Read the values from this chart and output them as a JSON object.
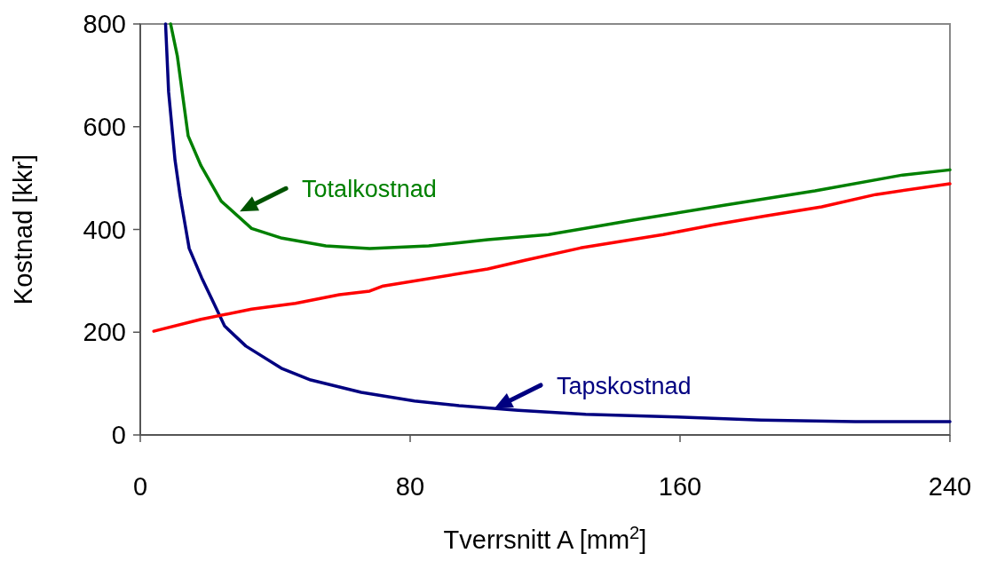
{
  "chart_data": {
    "type": "line",
    "xlabel": "Tverrsnitt A [mm$^{2}$]",
    "ylabel": "Kostnad [kkr]",
    "xlim": [
      0,
      240
    ],
    "xticks": [
      0,
      80,
      160,
      240
    ],
    "ylim": [
      0,
      800
    ],
    "yticks": [
      0,
      200,
      400,
      600,
      800
    ],
    "grid": false,
    "marker": "none",
    "line_style": "solid",
    "series": [
      {
        "color": "#008000",
        "x": [
          9,
          11,
          14.2,
          18,
          24,
          33,
          42,
          55,
          68,
          85.5,
          103,
          121,
          146,
          173,
          200,
          226,
          240
        ],
        "values": [
          800,
          737,
          582,
          524,
          455,
          402,
          383,
          368,
          363,
          368,
          380,
          390,
          418,
          447,
          475,
          506,
          516
        ]
      },
      {
        "color": "#000080",
        "x": [
          7.5,
          8.4,
          10.3,
          11.8,
          14.5,
          18.2,
          21.6,
          25,
          31.3,
          41.8,
          50.5,
          65.5,
          81.3,
          94.5,
          112,
          132,
          159,
          184,
          212,
          240
        ],
        "values": [
          800,
          668,
          535,
          466,
          363,
          306,
          259,
          212,
          173,
          130,
          107,
          83,
          66,
          57,
          48,
          40,
          35,
          29,
          26,
          26
        ]
      },
      {
        "color": "#ff0000",
        "x": [
          4,
          18,
          33,
          46,
          59,
          68,
          72,
          103,
          114,
          130.5,
          155,
          170,
          185,
          202,
          218,
          240
        ],
        "values": [
          202,
          225,
          245,
          256,
          273,
          280,
          290,
          323,
          340,
          364,
          390,
          409,
          426,
          444,
          468,
          489
        ]
      }
    ],
    "annotations": [
      {
        "text": "Totalkostnad",
        "x": 29.5,
        "y": 435
      },
      {
        "text": "Tapskostnad",
        "x": 105,
        "y": 52
      }
    ]
  }
}
